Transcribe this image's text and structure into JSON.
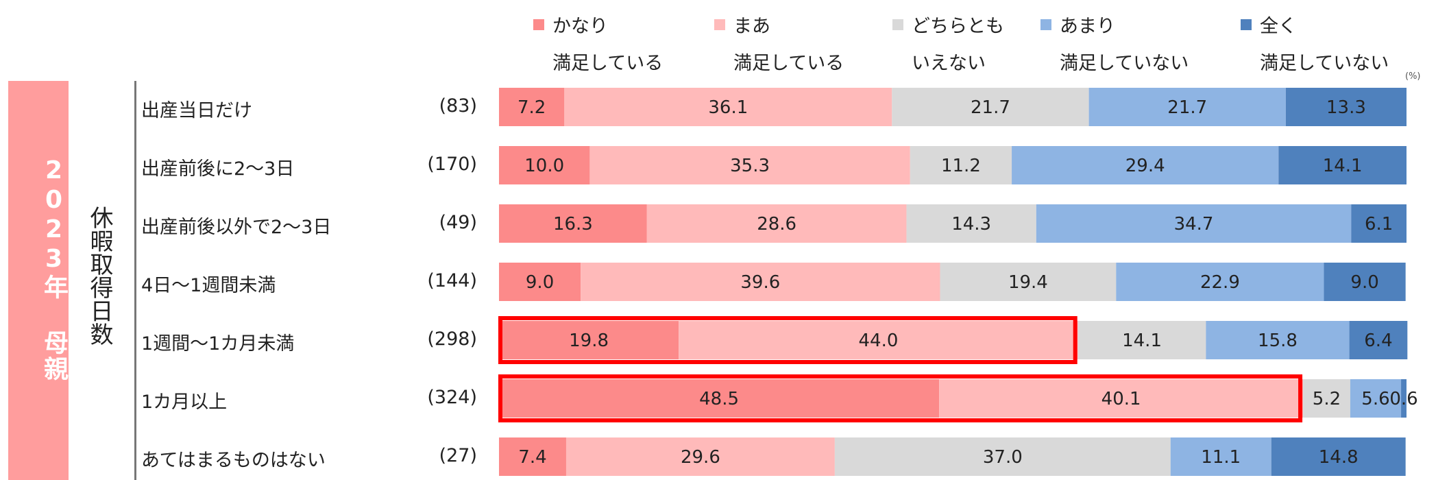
{
  "chart_data": {
    "type": "bar",
    "orientation": "horizontal-stacked-100",
    "unit": "(%)",
    "year_label": "2023年 母親",
    "group_label": "休暇取得日数",
    "legend_position": "top",
    "series": [
      {
        "name": "かなり\n満足している",
        "color": "#fc8a8a"
      },
      {
        "name": "まあ\n満足している",
        "color": "#ffbaba"
      },
      {
        "name": "どちらとも\nいえない",
        "color": "#d9d9d9"
      },
      {
        "name": "あまり\n満足していない",
        "color": "#8eb4e3"
      },
      {
        "name": "全く\n満足していない",
        "color": "#4f81bd"
      }
    ],
    "categories": [
      {
        "label": "出産当日だけ",
        "n": "(83)",
        "values": [
          7.2,
          36.1,
          21.7,
          21.7,
          13.3
        ]
      },
      {
        "label": "出産前後に2～3日",
        "n": "(170)",
        "values": [
          10.0,
          35.3,
          11.2,
          29.4,
          14.1
        ]
      },
      {
        "label": "出産前後以外で2～3日",
        "n": "(49)",
        "values": [
          16.3,
          28.6,
          14.3,
          34.7,
          6.1
        ]
      },
      {
        "label": "4日～1週間未満",
        "n": "(144)",
        "values": [
          9.0,
          39.6,
          19.4,
          22.9,
          9.0
        ]
      },
      {
        "label": "1週間～1カ月未満",
        "n": "(298)",
        "values": [
          19.8,
          44.0,
          14.1,
          15.8,
          6.4
        ]
      },
      {
        "label": "1カ月以上",
        "n": "(324)",
        "values": [
          48.5,
          40.1,
          5.2,
          5.6,
          0.6
        ]
      },
      {
        "label": "あてはまるものはない",
        "n": "(27)",
        "values": [
          7.4,
          29.6,
          37.0,
          11.1,
          14.8
        ]
      }
    ],
    "highlights": [
      {
        "category_index": 4,
        "series": [
          0,
          1
        ],
        "color": "#ff0000"
      },
      {
        "category_index": 5,
        "series": [
          0,
          1
        ],
        "color": "#ff0000"
      }
    ],
    "xlim": [
      0,
      100
    ],
    "grid": false
  }
}
